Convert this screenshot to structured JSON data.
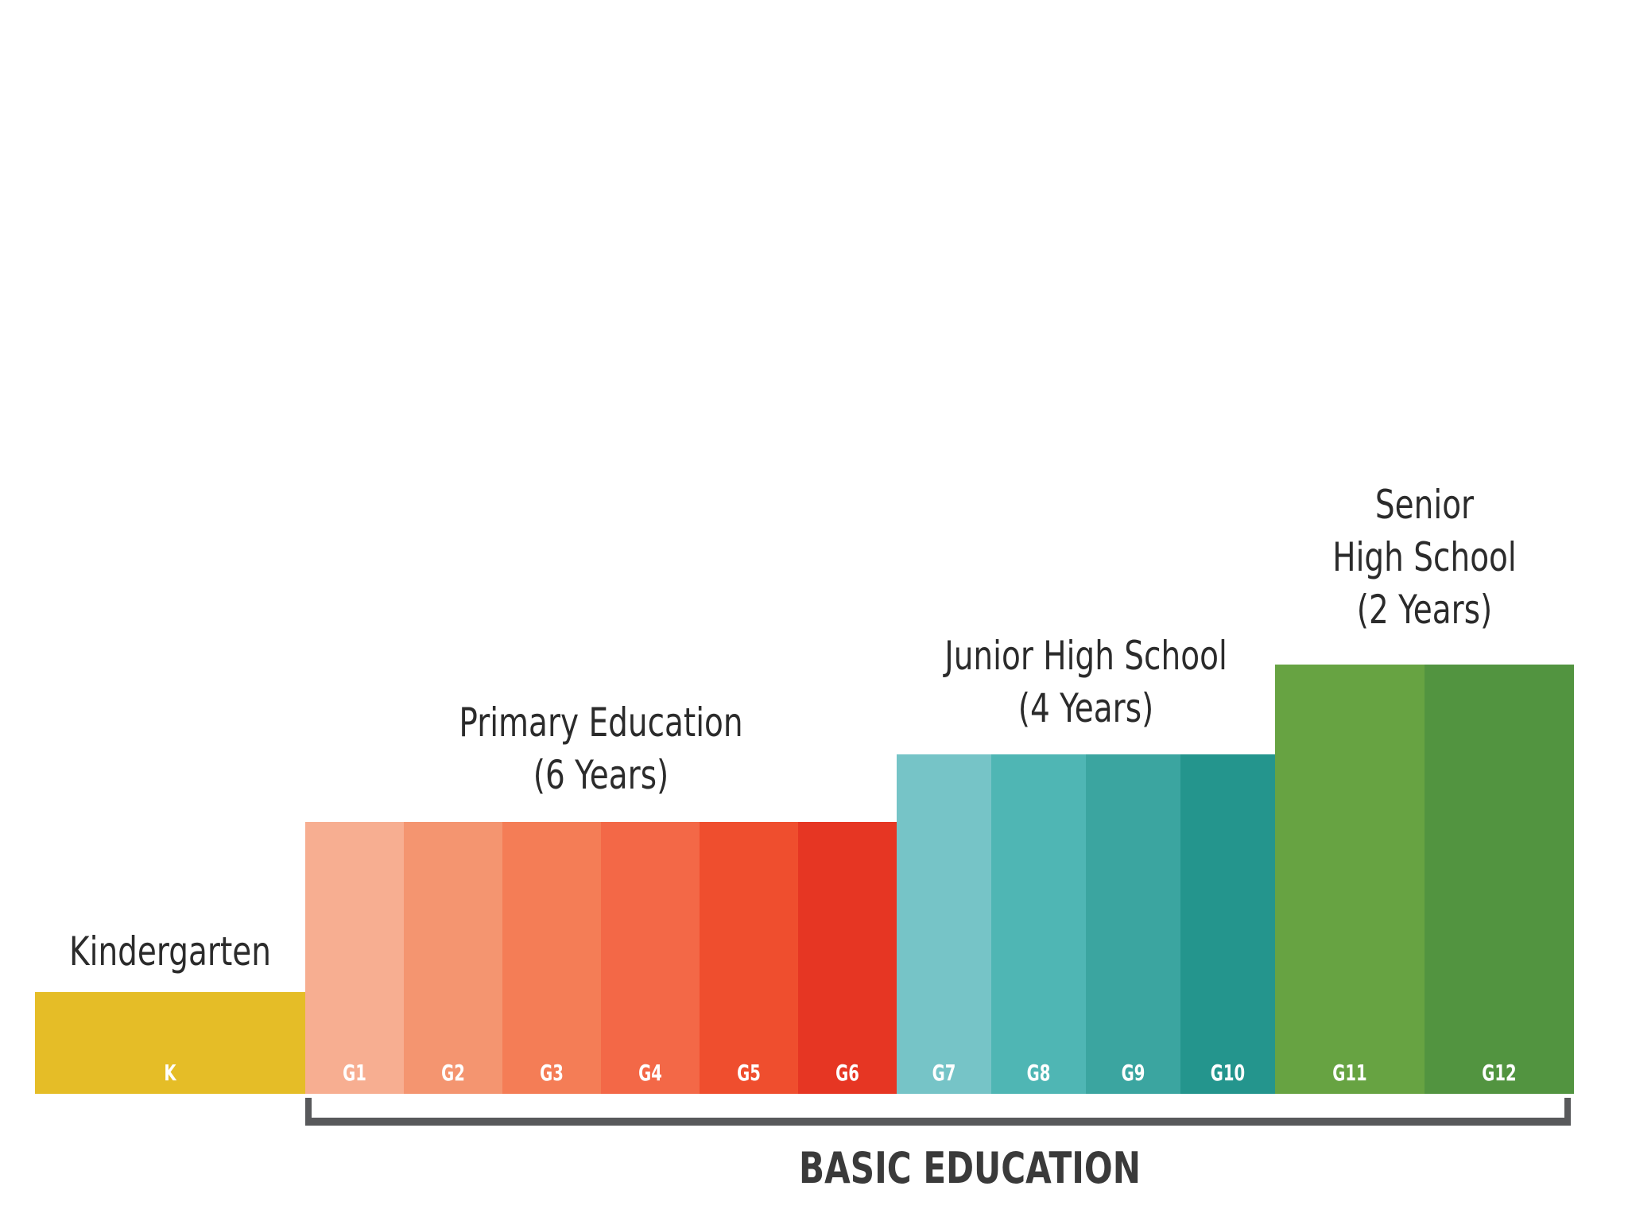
{
  "stages": [
    {
      "id": "kindergarten",
      "lines": [
        "Kindergarten"
      ]
    },
    {
      "id": "primary",
      "lines": [
        "Primary Education",
        "(6 Years)"
      ]
    },
    {
      "id": "junior",
      "lines": [
        "Junior High School",
        "(4 Years)"
      ]
    },
    {
      "id": "senior",
      "lines": [
        "Senior",
        "High School",
        "(2 Years)"
      ]
    }
  ],
  "grades": [
    {
      "label": "K",
      "stage": "kindergarten",
      "color": "#e5bd27"
    },
    {
      "label": "G1",
      "stage": "primary",
      "color": "#f7ae91"
    },
    {
      "label": "G2",
      "stage": "primary",
      "color": "#f49570"
    },
    {
      "label": "G3",
      "stage": "primary",
      "color": "#f47d56"
    },
    {
      "label": "G4",
      "stage": "primary",
      "color": "#f36847"
    },
    {
      "label": "G5",
      "stage": "primary",
      "color": "#ef4e2e"
    },
    {
      "label": "G6",
      "stage": "primary",
      "color": "#e63623"
    },
    {
      "label": "G7",
      "stage": "junior",
      "color": "#76c4c7"
    },
    {
      "label": "G8",
      "stage": "junior",
      "color": "#4fb6b4"
    },
    {
      "label": "G9",
      "stage": "junior",
      "color": "#3ba5a0"
    },
    {
      "label": "G10",
      "stage": "junior",
      "color": "#24958d"
    },
    {
      "label": "G11",
      "stage": "senior",
      "color": "#67a342"
    },
    {
      "label": "G12",
      "stage": "senior",
      "color": "#529440"
    }
  ],
  "bracket_label": "BASIC EDUCATION",
  "text_color": "#2b2b2b",
  "bracket_color": "#58595b"
}
